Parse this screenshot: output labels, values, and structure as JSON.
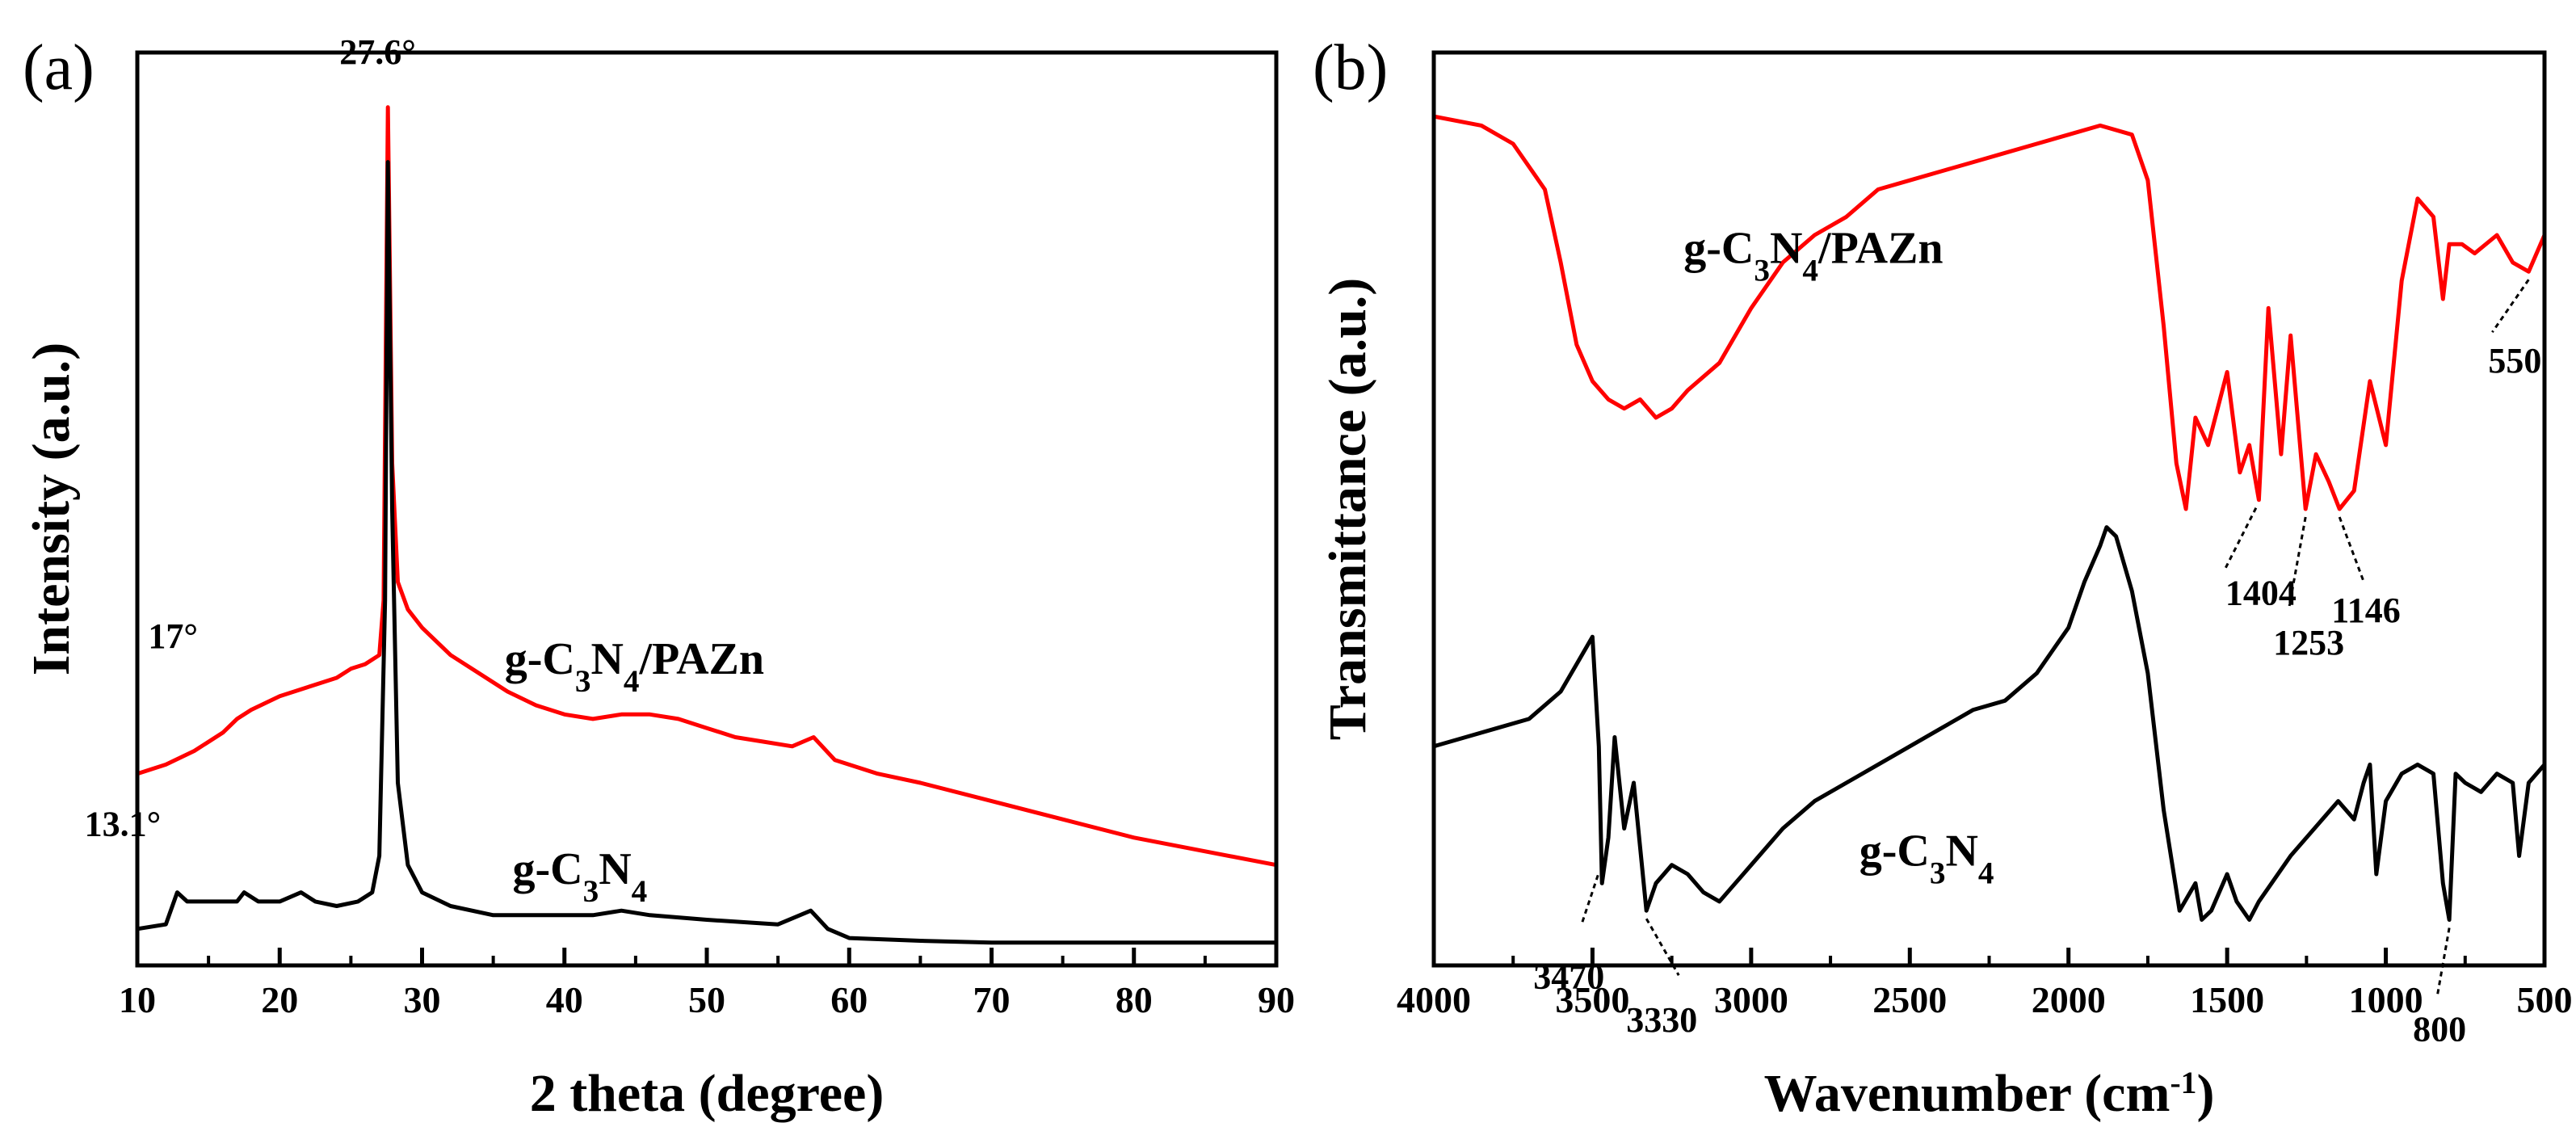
{
  "chart_data": [
    {
      "type": "line",
      "panel_label": "(a)",
      "xlabel": "2 theta (degree)",
      "ylabel": "Intensity (a.u.)",
      "xlim": [
        10,
        90
      ],
      "ylim": [
        0,
        100
      ],
      "x_ticks": [
        10,
        20,
        30,
        40,
        50,
        60,
        70,
        80,
        90
      ],
      "y_ticks_shown": false,
      "grid": false,
      "legend": "none",
      "series": [
        {
          "name": "g-C3N4/PAZn",
          "color": "#ff0000",
          "points": [
            [
              10,
              21
            ],
            [
              12,
              22
            ],
            [
              14,
              23.5
            ],
            [
              16,
              25.5
            ],
            [
              17,
              27
            ],
            [
              18,
              28
            ],
            [
              20,
              29.5
            ],
            [
              22,
              30.5
            ],
            [
              24,
              31.5
            ],
            [
              25,
              32.5
            ],
            [
              26,
              33
            ],
            [
              27,
              34
            ],
            [
              27.3,
              40
            ],
            [
              27.6,
              94
            ],
            [
              27.9,
              55
            ],
            [
              28.3,
              42
            ],
            [
              29,
              39
            ],
            [
              30,
              37
            ],
            [
              32,
              34
            ],
            [
              34,
              32
            ],
            [
              36,
              30
            ],
            [
              38,
              28.5
            ],
            [
              40,
              27.5
            ],
            [
              42,
              27
            ],
            [
              44,
              27.5
            ],
            [
              46,
              27.5
            ],
            [
              48,
              27
            ],
            [
              50,
              26
            ],
            [
              52,
              25
            ],
            [
              54,
              24.5
            ],
            [
              56,
              24
            ],
            [
              57.5,
              25
            ],
            [
              59,
              22.5
            ],
            [
              62,
              21
            ],
            [
              65,
              20
            ],
            [
              70,
              18
            ],
            [
              75,
              16
            ],
            [
              80,
              14
            ],
            [
              85,
              12.5
            ],
            [
              90,
              11
            ]
          ]
        },
        {
          "name": "g-C3N4",
          "color": "#000000",
          "points": [
            [
              10,
              4
            ],
            [
              12,
              4.5
            ],
            [
              12.8,
              8
            ],
            [
              13.5,
              7
            ],
            [
              15,
              7
            ],
            [
              17,
              7
            ],
            [
              17.5,
              8
            ],
            [
              18.5,
              7
            ],
            [
              20,
              7
            ],
            [
              21.5,
              8
            ],
            [
              22.5,
              7
            ],
            [
              24,
              6.5
            ],
            [
              25.5,
              7
            ],
            [
              26.5,
              8
            ],
            [
              27,
              12
            ],
            [
              27.4,
              40
            ],
            [
              27.6,
              88
            ],
            [
              27.9,
              50
            ],
            [
              28.3,
              20
            ],
            [
              29,
              11
            ],
            [
              30,
              8
            ],
            [
              32,
              6.5
            ],
            [
              35,
              5.5
            ],
            [
              40,
              5.5
            ],
            [
              42,
              5.5
            ],
            [
              44,
              6
            ],
            [
              46,
              5.5
            ],
            [
              50,
              5
            ],
            [
              55,
              4.5
            ],
            [
              57.3,
              6
            ],
            [
              58.5,
              4
            ],
            [
              60,
              3
            ],
            [
              65,
              2.7
            ],
            [
              70,
              2.5
            ],
            [
              75,
              2.5
            ],
            [
              80,
              2.5
            ],
            [
              85,
              2.5
            ],
            [
              90,
              2.5
            ]
          ]
        }
      ],
      "annotations": [
        {
          "text": "27.6°",
          "x": 27.6,
          "y": 97
        },
        {
          "text": "17°",
          "x": 17,
          "y": 33
        },
        {
          "text": "13.1°",
          "x": 13.1,
          "y": 12
        }
      ],
      "series_labels": [
        {
          "series": "g-C3N4/PAZn",
          "x": 48,
          "y": 33
        },
        {
          "series": "g-C3N4",
          "x": 46,
          "y": 10
        }
      ]
    },
    {
      "type": "line",
      "panel_label": "(b)",
      "xlabel": "Wavenumber (cm",
      "xlabel_sup": "-1",
      "xlabel_suffix": ")",
      "ylabel": "Transmittance (a.u.)",
      "xlim": [
        4000,
        500
      ],
      "ylim": [
        0,
        100
      ],
      "x_ticks": [
        4000,
        3500,
        3000,
        2500,
        2000,
        1500,
        1000,
        500
      ],
      "y_ticks_shown": false,
      "grid": false,
      "legend": "none",
      "series": [
        {
          "name": "g-C3N4/PAZn",
          "color": "#ff0000",
          "points": [
            [
              4000,
              93
            ],
            [
              3850,
              92
            ],
            [
              3750,
              90
            ],
            [
              3650,
              85
            ],
            [
              3600,
              77
            ],
            [
              3550,
              68
            ],
            [
              3500,
              64
            ],
            [
              3450,
              62
            ],
            [
              3400,
              61
            ],
            [
              3350,
              62
            ],
            [
              3300,
              60
            ],
            [
              3250,
              61
            ],
            [
              3200,
              63
            ],
            [
              3100,
              66
            ],
            [
              3000,
              72
            ],
            [
              2900,
              77
            ],
            [
              2800,
              80
            ],
            [
              2700,
              82
            ],
            [
              2600,
              85
            ],
            [
              2500,
              86
            ],
            [
              2400,
              87
            ],
            [
              2300,
              88
            ],
            [
              2200,
              89
            ],
            [
              2100,
              90
            ],
            [
              2000,
              91
            ],
            [
              1900,
              92
            ],
            [
              1800,
              91
            ],
            [
              1750,
              86
            ],
            [
              1700,
              70
            ],
            [
              1660,
              55
            ],
            [
              1630,
              50
            ],
            [
              1600,
              60
            ],
            [
              1560,
              57
            ],
            [
              1500,
              65
            ],
            [
              1460,
              54
            ],
            [
              1430,
              57
            ],
            [
              1400,
              51
            ],
            [
              1370,
              72
            ],
            [
              1330,
              56
            ],
            [
              1300,
              69
            ],
            [
              1253,
              50
            ],
            [
              1220,
              56
            ],
            [
              1180,
              53
            ],
            [
              1146,
              50
            ],
            [
              1100,
              52
            ],
            [
              1050,
              64
            ],
            [
              1000,
              57
            ],
            [
              950,
              75
            ],
            [
              900,
              84
            ],
            [
              850,
              82
            ],
            [
              820,
              73
            ],
            [
              800,
              79
            ],
            [
              760,
              79
            ],
            [
              720,
              78
            ],
            [
              650,
              80
            ],
            [
              600,
              77
            ],
            [
              550,
              76
            ],
            [
              500,
              80
            ]
          ]
        },
        {
          "name": "g-C3N4",
          "color": "#000000",
          "points": [
            [
              4000,
              24
            ],
            [
              3900,
              25
            ],
            [
              3800,
              26
            ],
            [
              3700,
              27
            ],
            [
              3600,
              30
            ],
            [
              3550,
              33
            ],
            [
              3500,
              36
            ],
            [
              3480,
              24
            ],
            [
              3470,
              9
            ],
            [
              3450,
              14
            ],
            [
              3430,
              25
            ],
            [
              3400,
              15
            ],
            [
              3370,
              20
            ],
            [
              3330,
              6
            ],
            [
              3300,
              9
            ],
            [
              3250,
              11
            ],
            [
              3200,
              10
            ],
            [
              3150,
              8
            ],
            [
              3100,
              7
            ],
            [
              3000,
              11
            ],
            [
              2900,
              15
            ],
            [
              2800,
              18
            ],
            [
              2700,
              20
            ],
            [
              2600,
              22
            ],
            [
              2500,
              24
            ],
            [
              2400,
              26
            ],
            [
              2300,
              28
            ],
            [
              2200,
              29
            ],
            [
              2100,
              32
            ],
            [
              2000,
              37
            ],
            [
              1950,
              42
            ],
            [
              1900,
              46
            ],
            [
              1880,
              48
            ],
            [
              1850,
              47
            ],
            [
              1800,
              41
            ],
            [
              1750,
              32
            ],
            [
              1700,
              17
            ],
            [
              1650,
              6
            ],
            [
              1600,
              9
            ],
            [
              1580,
              5
            ],
            [
              1550,
              6
            ],
            [
              1500,
              10
            ],
            [
              1470,
              7
            ],
            [
              1430,
              5
            ],
            [
              1400,
              7
            ],
            [
              1300,
              12
            ],
            [
              1200,
              16
            ],
            [
              1150,
              18
            ],
            [
              1100,
              16
            ],
            [
              1070,
              20
            ],
            [
              1050,
              22
            ],
            [
              1030,
              10
            ],
            [
              1000,
              18
            ],
            [
              950,
              21
            ],
            [
              900,
              22
            ],
            [
              850,
              21
            ],
            [
              820,
              9
            ],
            [
              800,
              5
            ],
            [
              780,
              21
            ],
            [
              750,
              20
            ],
            [
              700,
              19
            ],
            [
              650,
              21
            ],
            [
              600,
              20
            ],
            [
              580,
              12
            ],
            [
              550,
              20
            ],
            [
              500,
              22
            ]
          ]
        }
      ],
      "annotations": [
        {
          "text": "1404",
          "x": 1404,
          "y": 51
        },
        {
          "text": "1253",
          "x": 1253,
          "y": 50
        },
        {
          "text": "1146",
          "x": 1146,
          "y": 50
        },
        {
          "text": "550",
          "x": 550,
          "y": 76
        },
        {
          "text": "3470",
          "x": 3470,
          "y": 9
        },
        {
          "text": "3330",
          "x": 3330,
          "y": 6
        },
        {
          "text": "800",
          "x": 800,
          "y": 5
        }
      ],
      "series_labels": [
        {
          "series": "g-C3N4/PAZn",
          "x": 2500,
          "y": 78
        },
        {
          "series": "g-C3N4",
          "x": 2150,
          "y": 12
        }
      ]
    }
  ]
}
